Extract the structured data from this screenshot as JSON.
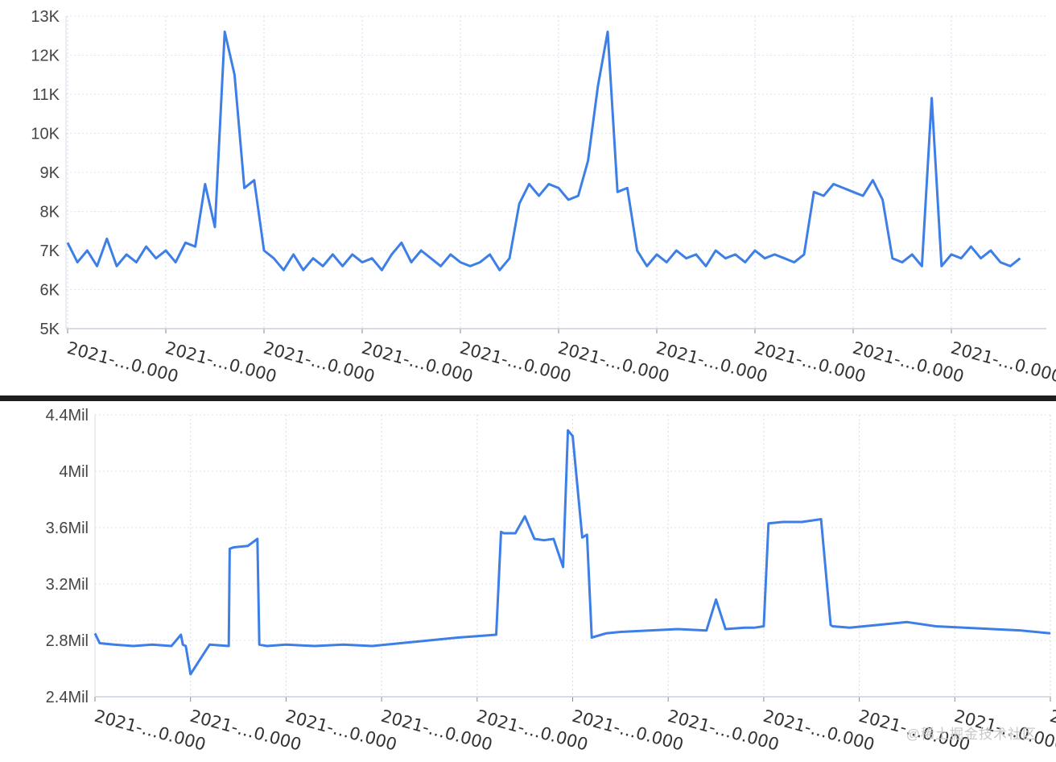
{
  "chart_data": [
    {
      "type": "line",
      "title": "",
      "xlabel": "",
      "ylabel": "",
      "ylim": [
        5000,
        13000
      ],
      "y_ticks": [
        "5K",
        "6K",
        "7K",
        "8K",
        "9K",
        "10K",
        "11K",
        "12K",
        "13K"
      ],
      "x_tick_labels": [
        "2021-…0.000",
        "2021-…0.000",
        "2021-…0.000",
        "2021-…0.000",
        "2021-…0.000",
        "2021-…0.000",
        "2021-…0.000",
        "2021-…0.000",
        "2021-…0.000",
        "2021-…0.000",
        "2"
      ],
      "grid": true,
      "color": "#3d7fe6",
      "series": [
        {
          "x": [
            0,
            0.1,
            0.2,
            0.3,
            0.4,
            0.5,
            0.6,
            0.7,
            0.8,
            0.9,
            1.0,
            1.1,
            1.2,
            1.3,
            1.4,
            1.5,
            1.6,
            1.7,
            1.8,
            1.9,
            2.0,
            2.1,
            2.2,
            2.3,
            2.4,
            2.5,
            2.6,
            2.7,
            2.8,
            2.9,
            3.0,
            3.1,
            3.2,
            3.3,
            3.4,
            3.5,
            3.6,
            3.7,
            3.8,
            3.9,
            4.0,
            4.1,
            4.2,
            4.3,
            4.4,
            4.5,
            4.6,
            4.7,
            4.8,
            4.9,
            5.0,
            5.1,
            5.2,
            5.3,
            5.4,
            5.5,
            5.6,
            5.7,
            5.8,
            5.9,
            6.0,
            6.1,
            6.2,
            6.3,
            6.4,
            6.5,
            6.6,
            6.7,
            6.8,
            6.9,
            7.0,
            7.1,
            7.2,
            7.3,
            7.4,
            7.5,
            7.6,
            7.7,
            7.8,
            7.9,
            8.0,
            8.1,
            8.2,
            8.3,
            8.4,
            8.5,
            8.6,
            8.7,
            8.8,
            8.9,
            9.0,
            9.1,
            9.2,
            9.3,
            9.4,
            9.5,
            9.6,
            9.7
          ],
          "values": [
            7200,
            6700,
            7000,
            6600,
            7300,
            6600,
            6900,
            6700,
            7100,
            6800,
            7000,
            6700,
            7200,
            7100,
            8700,
            7600,
            12600,
            11500,
            8600,
            8800,
            7000,
            6800,
            6500,
            6900,
            6500,
            6800,
            6600,
            6900,
            6600,
            6900,
            6700,
            6800,
            6500,
            6900,
            7200,
            6700,
            7000,
            6800,
            6600,
            6900,
            6700,
            6600,
            6700,
            6900,
            6500,
            6800,
            8200,
            8700,
            8400,
            8700,
            8600,
            8300,
            8400,
            9300,
            11200,
            12600,
            8500,
            8600,
            7000,
            6600,
            6900,
            6700,
            7000,
            6800,
            6900,
            6600,
            7000,
            6800,
            6900,
            6700,
            7000,
            6800,
            6900,
            6800,
            6700,
            6900,
            8500,
            8400,
            8700,
            8600,
            8500,
            8400,
            8800,
            8300,
            6800,
            6700,
            6900,
            6600,
            10900,
            6600,
            6900,
            6800,
            7100,
            6800,
            7000,
            6700,
            6600,
            6800
          ]
        }
      ]
    },
    {
      "type": "line",
      "title": "",
      "xlabel": "",
      "ylabel": "",
      "ylim": [
        2400000,
        4400000
      ],
      "y_ticks": [
        "2.4Mil",
        "2.8Mil",
        "3.2Mil",
        "3.6Mil",
        "4Mil",
        "4.4Mil"
      ],
      "x_tick_labels": [
        "2021-…0.000",
        "2021-…0.000",
        "2021-…0.000",
        "2021-…0.000",
        "2021-…0.000",
        "2021-…0.000",
        "2021-…0.000",
        "2021-…0.000",
        "2021-…0.000",
        "2021-…0.000",
        "2"
      ],
      "grid": true,
      "color": "#3d7fe6",
      "series": [
        {
          "x": [
            0,
            0.05,
            0.2,
            0.4,
            0.6,
            0.8,
            0.9,
            0.92,
            0.95,
            1.0,
            1.2,
            1.4,
            1.41,
            1.45,
            1.6,
            1.7,
            1.72,
            1.8,
            2.0,
            2.3,
            2.6,
            2.9,
            3.2,
            3.5,
            3.8,
            4.0,
            4.2,
            4.25,
            4.28,
            4.4,
            4.5,
            4.6,
            4.7,
            4.8,
            4.9,
            4.95,
            5.0,
            5.1,
            5.15,
            5.2,
            5.3,
            5.35,
            5.5,
            5.8,
            6.1,
            6.4,
            6.5,
            6.6,
            6.8,
            6.9,
            7.0,
            7.05,
            7.2,
            7.4,
            7.6,
            7.7,
            7.72,
            7.9,
            8.2,
            8.5,
            8.8,
            9.1,
            9.4,
            9.7,
            10.0
          ],
          "values": [
            2850000,
            2780000,
            2770000,
            2760000,
            2770000,
            2760000,
            2840000,
            2770000,
            2760000,
            2560000,
            2770000,
            2760000,
            3450000,
            3460000,
            3470000,
            3520000,
            2770000,
            2760000,
            2770000,
            2760000,
            2770000,
            2760000,
            2780000,
            2800000,
            2820000,
            2830000,
            2840000,
            3570000,
            3560000,
            3560000,
            3680000,
            3520000,
            3510000,
            3520000,
            3320000,
            4290000,
            4250000,
            3530000,
            3550000,
            2820000,
            2840000,
            2850000,
            2860000,
            2870000,
            2880000,
            2870000,
            3090000,
            2880000,
            2890000,
            2890000,
            2900000,
            3630000,
            3640000,
            3640000,
            3660000,
            2910000,
            2900000,
            2890000,
            2910000,
            2930000,
            2900000,
            2890000,
            2880000,
            2870000,
            2850000
          ]
        }
      ]
    }
  ],
  "watermark": "@稀土掘金技术社区"
}
